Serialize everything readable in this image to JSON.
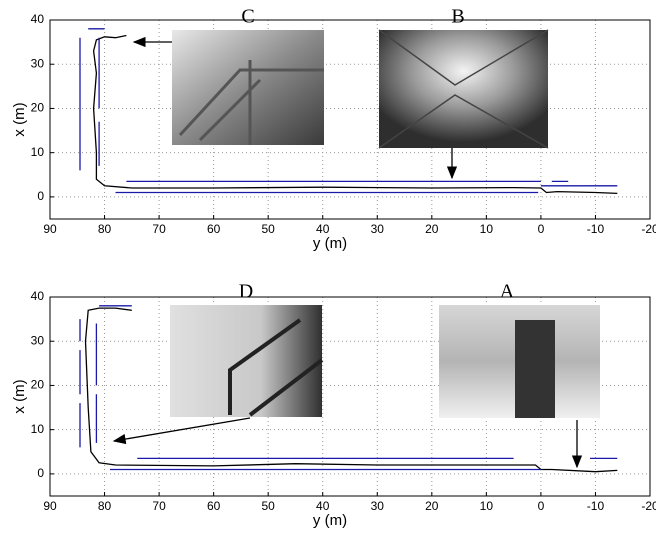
{
  "chart_data": [
    {
      "type": "line",
      "xlabel": "y (m)",
      "ylabel": "x (m)",
      "xlim": [
        90,
        -20
      ],
      "ylim": [
        -5,
        40
      ],
      "xticks": [
        90,
        80,
        70,
        60,
        50,
        40,
        30,
        20,
        10,
        0,
        -10,
        -20
      ],
      "yticks": [
        0,
        10,
        20,
        30,
        40
      ],
      "grid": true,
      "annotations": [
        "C",
        "B"
      ],
      "series": [
        {
          "color": "#000000",
          "x": [
            76,
            78,
            80,
            81.5,
            82,
            81.5,
            82,
            81.5,
            81.5,
            80,
            75,
            60,
            40,
            20,
            5,
            0,
            -1,
            -3,
            -10,
            -14
          ],
          "values": [
            36.5,
            36,
            36.2,
            35.5,
            33,
            28,
            20,
            10,
            4,
            2.5,
            2,
            2,
            2.2,
            2,
            2.1,
            2,
            1,
            1.2,
            1,
            0.8
          ]
        },
        {
          "color": "#1a1aa8",
          "x": [
            84.5,
            84.5,
            null,
            81,
            81,
            null,
            81,
            81,
            null,
            80,
            83,
            null,
            76,
            0,
            null,
            78,
            0.5,
            null,
            -2,
            -5,
            null,
            0,
            -14
          ],
          "values": [
            6,
            36,
            null,
            20,
            36,
            null,
            7,
            17,
            null,
            38,
            38,
            null,
            3.5,
            3.5,
            null,
            1,
            1,
            null,
            3.5,
            3.5,
            null,
            2.5,
            2.5
          ]
        }
      ]
    },
    {
      "type": "line",
      "xlabel": "y (m)",
      "ylabel": "x (m)",
      "xlim": [
        90,
        -20
      ],
      "ylim": [
        -5,
        40
      ],
      "xticks": [
        90,
        80,
        70,
        60,
        50,
        40,
        30,
        20,
        10,
        0,
        -10,
        -20
      ],
      "yticks": [
        0,
        10,
        20,
        30,
        40
      ],
      "grid": true,
      "annotations": [
        "D",
        "A"
      ],
      "series": [
        {
          "color": "#000000",
          "x": [
            75,
            78,
            81,
            83,
            83.5,
            83,
            82.5,
            81,
            78,
            60,
            45,
            30,
            10,
            1,
            0,
            -2,
            -10,
            -14
          ],
          "values": [
            37,
            37.5,
            37.5,
            37,
            30,
            15,
            5,
            2.5,
            2,
            1.8,
            2.3,
            2,
            2,
            2,
            1,
            1,
            0.5,
            0.8
          ]
        },
        {
          "color": "#1a1aa8",
          "x": [
            84.5,
            84.5,
            null,
            84.5,
            84.5,
            null,
            84.5,
            84.5,
            null,
            81.5,
            81.5,
            null,
            81.5,
            81.5,
            null,
            81,
            75,
            null,
            74,
            5,
            null,
            79,
            0,
            null,
            -9,
            -14
          ],
          "values": [
            6,
            16,
            null,
            18,
            28,
            null,
            30,
            35,
            null,
            20,
            34,
            null,
            7,
            18,
            null,
            38,
            38,
            null,
            3.5,
            3.5,
            null,
            1,
            1,
            null,
            3.5,
            3.5
          ]
        }
      ]
    }
  ]
}
